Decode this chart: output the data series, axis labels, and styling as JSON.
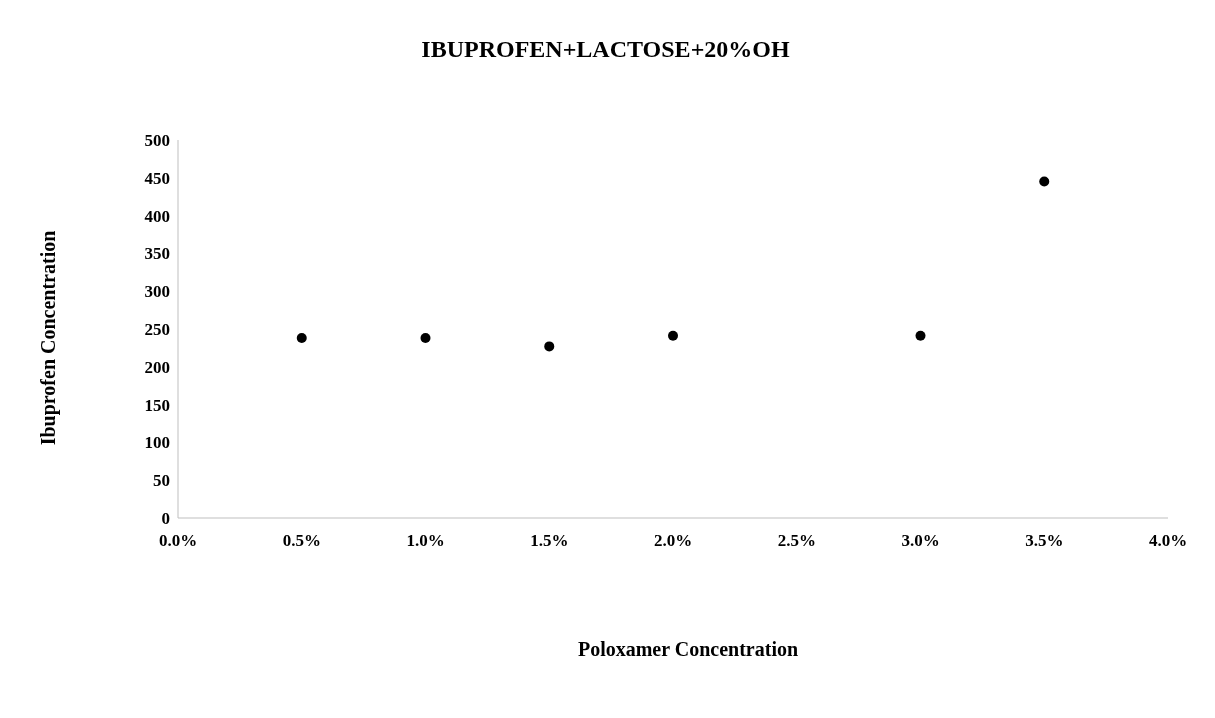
{
  "chart_data": {
    "type": "scatter",
    "title": "IBUPROFEN+LACTOSE+20%OH",
    "xlabel": "Poloxamer Concentration",
    "ylabel": "Ibuprofen Concentration",
    "x": [
      0.005,
      0.01,
      0.015,
      0.02,
      0.03,
      0.035
    ],
    "series": [
      {
        "color": "#000000",
        "values": [
          238,
          238,
          227,
          241,
          241,
          445
        ]
      }
    ],
    "xlim": [
      0,
      0.04
    ],
    "xticks": [
      {
        "value": 0,
        "label": "0.0%"
      },
      {
        "value": 0.005,
        "label": "0.5%"
      },
      {
        "value": 0.01,
        "label": "1.0%"
      },
      {
        "value": 0.015,
        "label": "1.5%"
      },
      {
        "value": 0.02,
        "label": "2.0%"
      },
      {
        "value": 0.025,
        "label": "2.5%"
      },
      {
        "value": 0.03,
        "label": "3.0%"
      },
      {
        "value": 0.035,
        "label": "3.5%"
      },
      {
        "value": 0.04,
        "label": "4.0%"
      }
    ],
    "ylim": [
      0,
      500
    ],
    "yticks": [
      0,
      50,
      100,
      150,
      200,
      250,
      300,
      350,
      400,
      450,
      500
    ],
    "grid": false,
    "marker": "circle",
    "legend": false
  }
}
